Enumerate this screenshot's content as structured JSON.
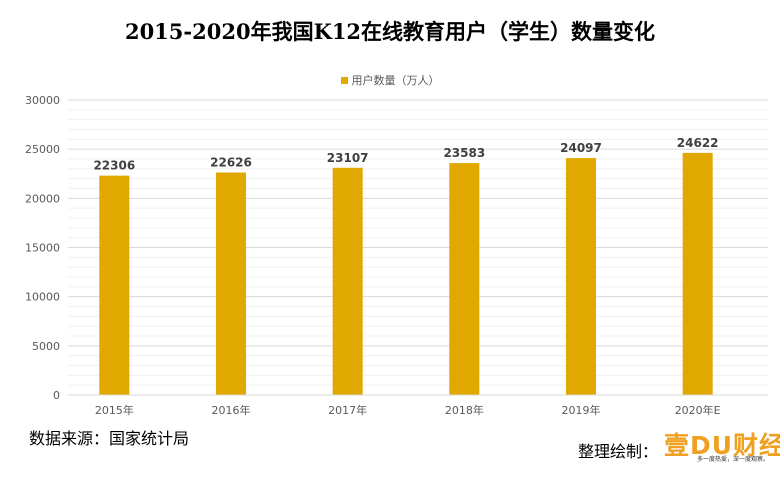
{
  "chart_data": {
    "type": "bar",
    "title": "2015-2020年我国K12在线教育用户（学生）数量变化",
    "categories": [
      "2015年",
      "2016年",
      "2017年",
      "2018年",
      "2019年",
      "2020年E"
    ],
    "series": [
      {
        "name": "用户数量（万人）",
        "values": [
          22306,
          22626,
          23107,
          23583,
          24097,
          24622
        ]
      }
    ],
    "ylim": [
      0,
      30000
    ],
    "yticks": [
      0,
      5000,
      10000,
      15000,
      20000,
      25000,
      30000
    ],
    "ytick_labels": [
      "0",
      "5000",
      "10000",
      "15000",
      "20000",
      "25000",
      "30000"
    ],
    "data_labels": [
      "22306",
      "22626",
      "23107",
      "23583",
      "24097",
      "24622"
    ],
    "legend_position": "top-center",
    "grid": true,
    "bar_color": "#e0a800"
  },
  "footer": {
    "source": "数据来源：国家统计局",
    "credit": "整理绘制：",
    "logo_text": "壹DU财经",
    "logo_slogan": "多一度热爱，深一度观察。"
  }
}
